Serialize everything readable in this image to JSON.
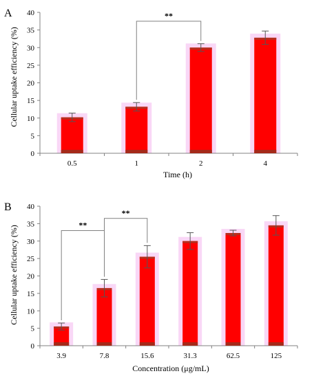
{
  "colors": {
    "bar": "#ff0000",
    "bar_base": "#a52a1a",
    "bar_cap": "#b5301f",
    "glow": "#f7c6f2",
    "axis": "#808080",
    "error": "#555555"
  },
  "chart_data": [
    {
      "panel_label": "A",
      "type": "bar",
      "xlabel": "Time (h)",
      "ylabel": "Cellular uptake efficiency (%)",
      "ylim": [
        0,
        40
      ],
      "yticks": [
        "0",
        "5",
        "10",
        "15",
        "20",
        "25",
        "30",
        "35",
        "40"
      ],
      "categories": [
        "0.5",
        "1",
        "2",
        "4"
      ],
      "values": [
        10.2,
        13.2,
        30.0,
        32.8
      ],
      "errors": [
        1.2,
        1.2,
        1.1,
        1.9
      ],
      "grid": false,
      "significance": [
        {
          "from": 1,
          "to": 2,
          "label": "**",
          "level": 37.5
        }
      ]
    },
    {
      "panel_label": "B",
      "type": "bar",
      "xlabel": "Concentration (μg/mL)",
      "ylabel": "Cellular uptake efficiency (%)",
      "ylim": [
        0,
        40
      ],
      "yticks": [
        "0",
        "5",
        "10",
        "15",
        "20",
        "25",
        "30",
        "35",
        "40"
      ],
      "categories": [
        "3.9",
        "7.8",
        "15.6",
        "31.3",
        "62.5",
        "125"
      ],
      "values": [
        5.5,
        16.5,
        25.5,
        30.0,
        32.3,
        34.5
      ],
      "errors": [
        1.0,
        2.5,
        3.2,
        2.4,
        0.8,
        2.8
      ],
      "grid": false,
      "significance": [
        {
          "from": 0,
          "to": 1,
          "label": "**",
          "level": 33.0
        },
        {
          "from": 1,
          "to": 2,
          "label": "**",
          "level": 36.5
        }
      ]
    }
  ]
}
